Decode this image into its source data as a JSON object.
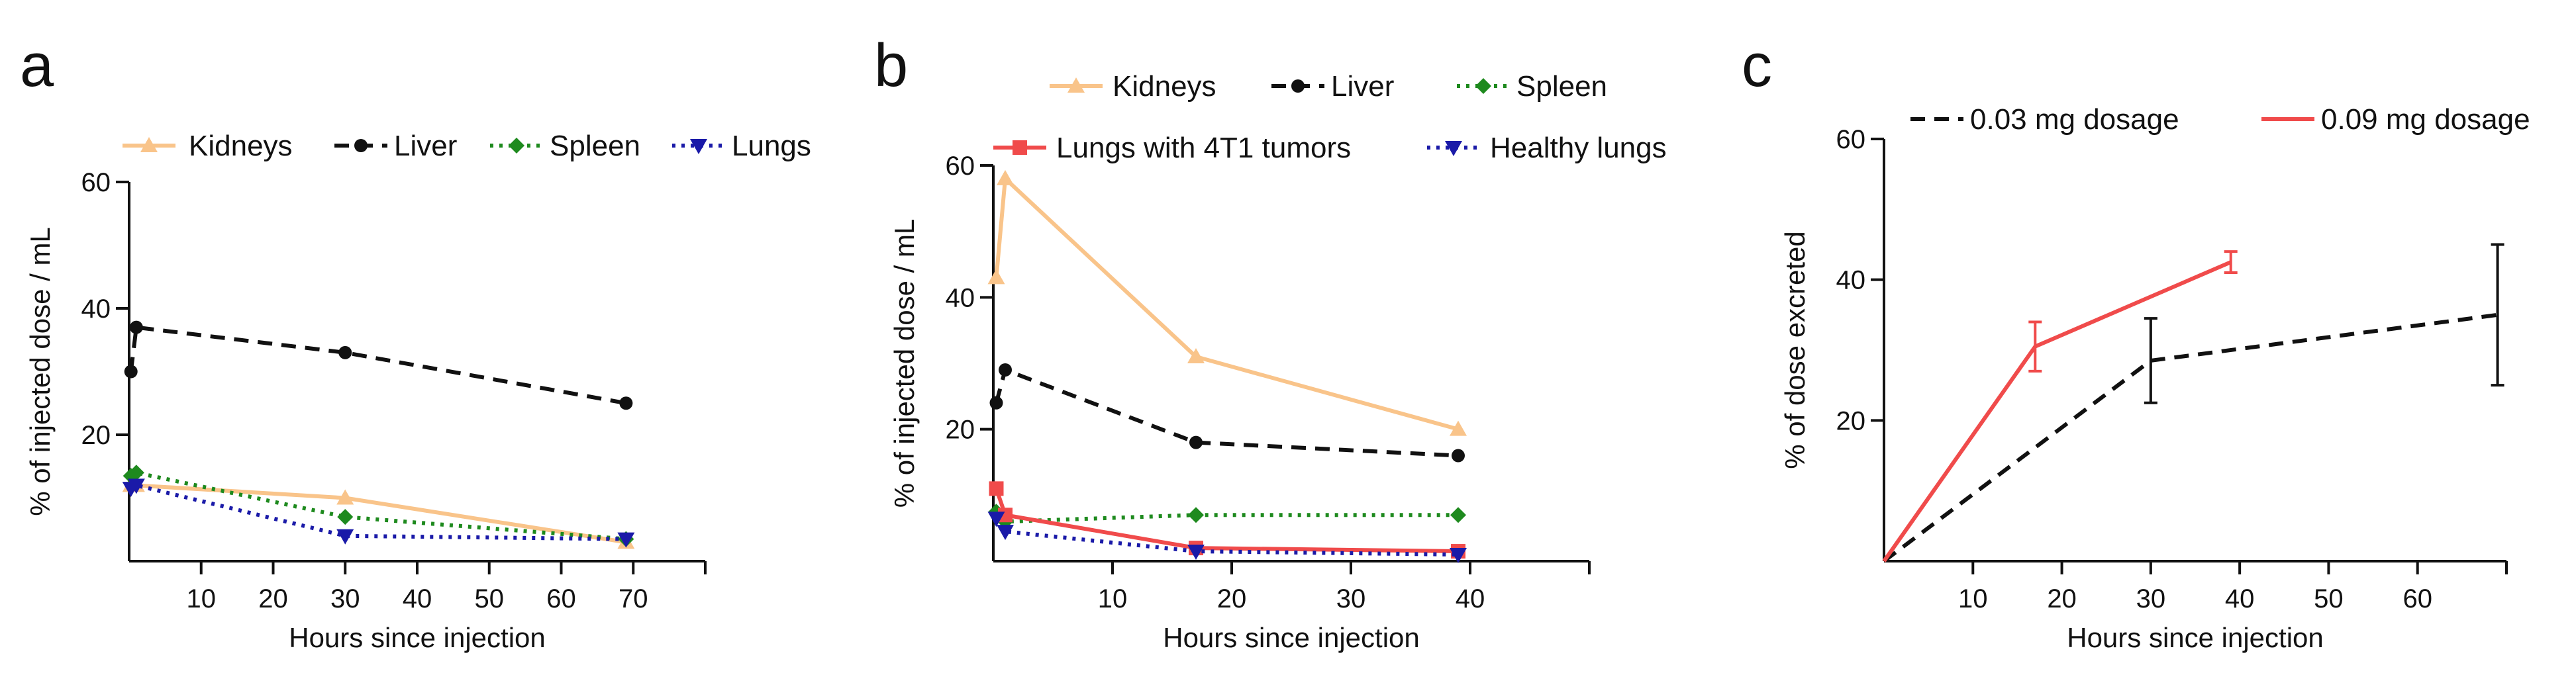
{
  "colors": {
    "kidneys": "#F9C48A",
    "liver": "#111111",
    "spleen": "#1E8A1E",
    "lungs": "#1A1AA8",
    "tumor": "#F04B4B",
    "axis": "#111111"
  },
  "chart_data": [
    {
      "id": "a",
      "panel_label": "a",
      "type": "line",
      "title": "",
      "xlabel": "Hours since injection",
      "ylabel": "% of injected dose / mL",
      "xlim": [
        0,
        80
      ],
      "ylim": [
        0,
        60
      ],
      "xticks": [
        10,
        20,
        30,
        40,
        50,
        60,
        70
      ],
      "yticks": [
        20,
        40,
        60
      ],
      "legend_position": "top",
      "series": [
        {
          "name": "Kidneys",
          "color_key": "kidneys",
          "dash": "solid",
          "marker": "triangle-up",
          "x": [
            0.25,
            1,
            30,
            69
          ],
          "y": [
            12,
            12,
            10,
            3
          ]
        },
        {
          "name": "Liver",
          "color_key": "liver",
          "dash": "dashed",
          "marker": "circle",
          "x": [
            0.25,
            1,
            30,
            69
          ],
          "y": [
            30,
            37,
            33,
            25
          ]
        },
        {
          "name": "Spleen",
          "color_key": "spleen",
          "dash": "dotted",
          "marker": "diamond",
          "x": [
            0.25,
            1,
            30,
            69
          ],
          "y": [
            13.5,
            14,
            7,
            3.5
          ]
        },
        {
          "name": "Lungs",
          "color_key": "lungs",
          "dash": "dotted",
          "marker": "triangle-down",
          "x": [
            0.25,
            1,
            30,
            69
          ],
          "y": [
            11.5,
            12,
            4,
            3.5
          ]
        }
      ]
    },
    {
      "id": "b",
      "panel_label": "b",
      "type": "line",
      "title": "",
      "xlabel": "Hours since injection",
      "ylabel": "% of injected dose / mL",
      "xlim": [
        0,
        50
      ],
      "ylim": [
        0,
        60
      ],
      "xticks": [
        10,
        20,
        30,
        40
      ],
      "yticks": [
        20,
        40,
        60
      ],
      "legend_position": "top",
      "series": [
        {
          "name": "Kidneys",
          "color_key": "kidneys",
          "dash": "solid",
          "marker": "triangle-up",
          "x": [
            0.25,
            1,
            17,
            39
          ],
          "y": [
            43,
            58,
            31,
            20
          ]
        },
        {
          "name": "Liver",
          "color_key": "liver",
          "dash": "dashed",
          "marker": "circle",
          "x": [
            0.25,
            1,
            17,
            39
          ],
          "y": [
            24,
            29,
            18,
            16
          ]
        },
        {
          "name": "Spleen",
          "color_key": "spleen",
          "dash": "dotted",
          "marker": "diamond",
          "x": [
            0.25,
            1,
            17,
            39
          ],
          "y": [
            7.5,
            6,
            7,
            7
          ]
        },
        {
          "name": "Lungs with 4T1 tumors",
          "color_key": "tumor",
          "dash": "solid",
          "marker": "square",
          "x": [
            0.25,
            1,
            17,
            39
          ],
          "y": [
            11,
            7,
            2,
            1.5
          ]
        },
        {
          "name": "Healthy lungs",
          "color_key": "lungs",
          "dash": "dotted",
          "marker": "triangle-down",
          "x": [
            0.25,
            1,
            17,
            39
          ],
          "y": [
            6.5,
            4.5,
            1.5,
            1
          ]
        }
      ]
    },
    {
      "id": "c",
      "panel_label": "c",
      "type": "line",
      "title": "",
      "xlabel": "Hours since injection",
      "ylabel": "% of dose excreted",
      "xlim": [
        0,
        70
      ],
      "ylim": [
        0,
        60
      ],
      "xticks": [
        10,
        20,
        30,
        40,
        50,
        60
      ],
      "yticks": [
        20,
        40,
        60
      ],
      "legend_position": "top",
      "series": [
        {
          "name": "0.03 mg dosage",
          "color_key": "liver",
          "dash": "dashed",
          "marker": "none",
          "x": [
            0,
            30,
            69
          ],
          "y": [
            0,
            28.5,
            35
          ],
          "err": [
            0,
            6,
            10
          ]
        },
        {
          "name": "0.09 mg dosage",
          "color_key": "tumor",
          "dash": "solid",
          "marker": "none",
          "x": [
            0,
            17,
            39
          ],
          "y": [
            0,
            30.5,
            42.5
          ],
          "err": [
            0,
            3.5,
            1.5
          ]
        }
      ]
    }
  ]
}
